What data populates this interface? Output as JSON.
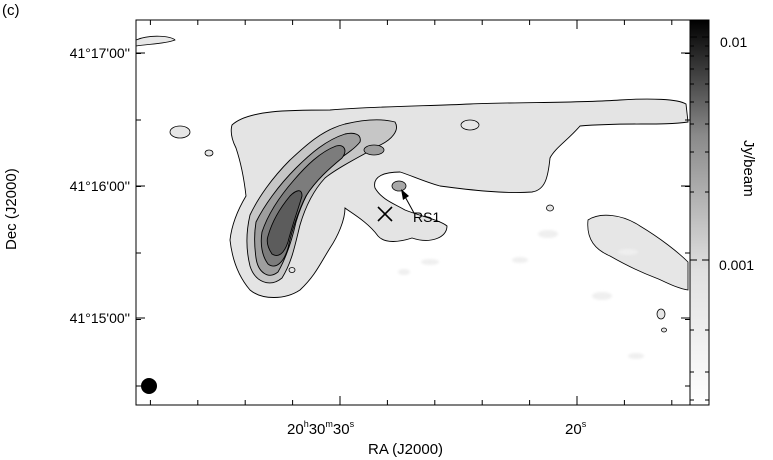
{
  "panel_label": "(c)",
  "chart_data": {
    "type": "heatmap",
    "title": "",
    "xlabel": "RA (J2000)",
    "ylabel": "Dec (J2000)",
    "x_ticks": [
      {
        "value": "20h30m30s",
        "main": "20",
        "h": "h",
        "mid": "30",
        "m": "m",
        "last": "30",
        "s": "s"
      },
      {
        "value": "20s",
        "main": "20",
        "s": "s"
      }
    ],
    "y_ticks": [
      "41°17'00''",
      "41°16'00''",
      "41°15'00''"
    ],
    "colorbar": {
      "label": "Jy/beam",
      "ticks": [
        "0.01",
        "0.001"
      ],
      "scale": "log",
      "colormap": "white-to-black"
    },
    "annotations": [
      {
        "text": "RS1",
        "type": "arrow-label"
      },
      {
        "text": "",
        "type": "cross-marker"
      },
      {
        "text": "",
        "type": "beam-ellipse"
      }
    ],
    "grid": false
  },
  "colors": {
    "background": "#ffffff",
    "emission_light": "#e6e6e6",
    "emission_mid": "#b4b4b4",
    "emission_dark": "#6e6e6e",
    "contour": "#000000"
  }
}
